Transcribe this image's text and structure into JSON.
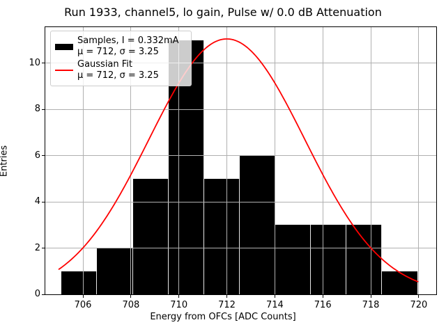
{
  "chart_data": {
    "type": "bar",
    "subtype": "histogram-with-fit",
    "title": "Run 1933, channel5, lo gain, Pulse w/ 0.0 dB Attenuation",
    "xlabel": "Energy from OFCs [ADC Counts]",
    "ylabel": "Entries",
    "xlim": [
      704.43,
      720.73
    ],
    "ylim": [
      0,
      11.56
    ],
    "xticks": [
      706,
      708,
      710,
      712,
      714,
      716,
      718,
      720
    ],
    "yticks": [
      0,
      2,
      4,
      6,
      8,
      10
    ],
    "grid": true,
    "grid_color": "#b0b0b0",
    "histogram": {
      "color": "#000000",
      "bin_edges": [
        705.1,
        706.59,
        708.08,
        709.56,
        711.05,
        712.53,
        714.02,
        715.5,
        716.99,
        718.47,
        719.96
      ],
      "counts": [
        1,
        2,
        5,
        11,
        5,
        6,
        3,
        3,
        3,
        1
      ]
    },
    "gaussian_fit": {
      "color": "#ff0000",
      "amplitude": 11.05,
      "mu": 712,
      "sigma": 3.25,
      "x_range": [
        705.0,
        719.96
      ]
    },
    "legend": {
      "position": "upper left",
      "entries": [
        {
          "swatch": "black-bar-swatch",
          "line1": "Samples, I = 0.332mA",
          "line2": "μ = 712, σ = 3.25"
        },
        {
          "swatch": "red-line-swatch",
          "line1": "Gaussian Fit",
          "line2": "μ = 712, σ = 3.25"
        }
      ]
    }
  }
}
